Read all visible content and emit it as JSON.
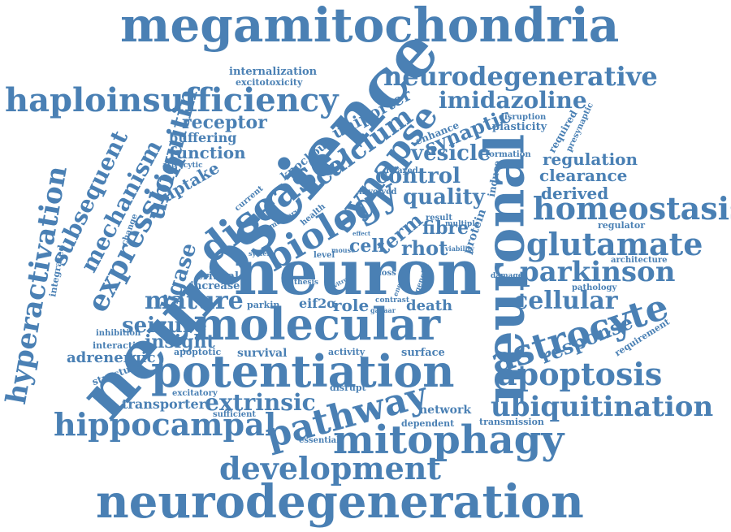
{
  "style": {
    "word_color": "#4a80b4",
    "background": "#ffffff"
  },
  "words": [
    "megamitochondria",
    "neuroscience",
    "neuron",
    "neuronal",
    "molecular",
    "potentiation",
    "neurodegeneration",
    "mitophagy",
    "haploinsufficiency",
    "disease",
    "biology",
    "synapse",
    "calcium",
    "astrocyte",
    "homeostasis",
    "glutamate",
    "parkinson",
    "apoptosis",
    "ubiquitination",
    "hippocampal",
    "pathway",
    "development",
    "neurodegenerative",
    "imidazoline",
    "ubiquitin",
    "expression",
    "mechanism",
    "subsequent",
    "hyperactivation",
    "extrinsic",
    "cellular",
    "response",
    "mature",
    "seizure",
    "insight",
    "adrenergic",
    "ligase",
    "uptake",
    "function",
    "buffering",
    "receptor",
    "uniporter",
    "synaptic",
    "vesicle",
    "control",
    "quality",
    "term",
    "fibre",
    "rhot",
    "cell",
    "role",
    "death",
    "eif2α",
    "regulation",
    "clearance",
    "derived",
    "knockout",
    "survival",
    "network",
    "transporter",
    "increase",
    "critical",
    "internalization",
    "excitotoxicity",
    "plasticity",
    "enhance",
    "disruption",
    "formation",
    "required",
    "presynaptic",
    "regulator",
    "architecture",
    "pathology",
    "requirement",
    "structure",
    "interaction",
    "inhibition",
    "apoptotic",
    "activity",
    "surface",
    "disrupt",
    "dependent",
    "transmission",
    "excitatory",
    "sufficient",
    "essential",
    "integrated",
    "change",
    "current",
    "memory",
    "health",
    "involved",
    "delayed",
    "result",
    "multiple",
    "viability",
    "protein",
    "induce",
    "loss",
    "thesis",
    "parkin",
    "level",
    "system",
    "mouse",
    "effect",
    "genetic",
    "damage",
    "astrocytic",
    "contrast",
    "gabaar",
    "energy",
    "vitro"
  ]
}
